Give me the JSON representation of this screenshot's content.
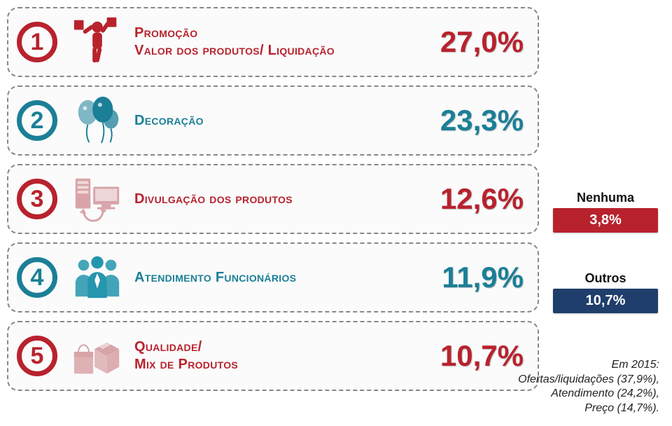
{
  "colors": {
    "red": "#b8222d",
    "teal": "#1b7f97",
    "navy": "#1f3e6b",
    "red_light": "#d8a4a8",
    "teal_icon": "#2496ad",
    "border": "#888888",
    "bg": "#fbfbfb"
  },
  "rows": [
    {
      "rank": "1",
      "rank_color": "red",
      "icon": "shopper",
      "icon_color": "red",
      "label": "Promoção\nValor dos produtos/ Liquidação",
      "label_color": "red",
      "value": "27,0%",
      "value_color": "red"
    },
    {
      "rank": "2",
      "rank_color": "teal",
      "icon": "balloons",
      "icon_color": "teal",
      "label": "Decoração",
      "label_color": "teal",
      "value": "23,3%",
      "value_color": "teal"
    },
    {
      "rank": "3",
      "rank_color": "red",
      "icon": "server-screen",
      "icon_color": "red_light",
      "label": "Divulgação dos produtos",
      "label_color": "red",
      "value": "12,6%",
      "value_color": "red"
    },
    {
      "rank": "4",
      "rank_color": "teal",
      "icon": "team",
      "icon_color": "teal_icon",
      "label": "Atendimento Funcionários",
      "label_color": "teal",
      "value": "11,9%",
      "value_color": "teal"
    },
    {
      "rank": "5",
      "rank_color": "red",
      "icon": "boxes",
      "icon_color": "red_light",
      "label": "Qualidade/\nMix de Produtos",
      "label_color": "red",
      "value": "10,7%",
      "value_color": "red"
    }
  ],
  "side": {
    "none": {
      "label": "Nenhuma",
      "value": "3,8%",
      "box_color": "red"
    },
    "others": {
      "label": "Outros",
      "value": "10,7%",
      "box_color": "navy"
    }
  },
  "footnote": {
    "l1": "Em 2015:",
    "l2": "Ofertas/liquidações (37,9%),",
    "l3": "Atendimento (24,2%),",
    "l4": "Preço (14,7%)."
  }
}
